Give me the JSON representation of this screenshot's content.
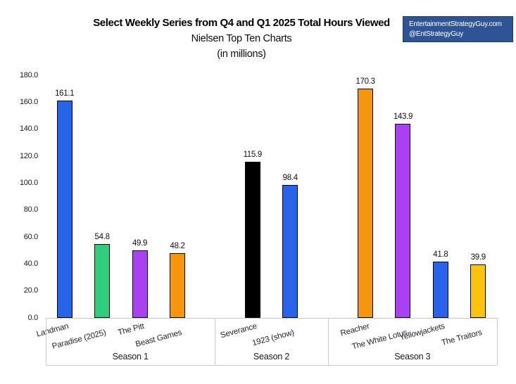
{
  "title": "Select Weekly Series from Q4 and Q1 2025 Total Hours Viewed",
  "subtitle": "Nielsen Top Ten Charts",
  "units": "(in millions)",
  "badge": {
    "line1": "EntertainmentStrategyGuy.com",
    "line2": "@EntStrategyGuy",
    "bg_color": "#2F5496",
    "border_color": "#1F3864",
    "text_color": "#FFFFFF"
  },
  "chart_data": {
    "type": "bar",
    "title": "Select Weekly Series from Q4 and Q1 2025 Total Hours Viewed",
    "subtitle": "Nielsen Top Ten Charts",
    "units": "(in millions)",
    "xlabel": "",
    "ylabel": "",
    "ylim": [
      0,
      180
    ],
    "ytick_step": 20,
    "ytick_format": "one_decimal",
    "gridlines": false,
    "legend": false,
    "bar_border_color": "#000000",
    "axis_line_color": "#c9c9c9",
    "groups": [
      {
        "label": "Season 1",
        "bars": [
          {
            "label": "Landman",
            "value": 161.1,
            "color": "#2863EA"
          },
          {
            "label": "Paradise (2025)",
            "value": 54.8,
            "color": "#2ECE7D"
          },
          {
            "label": "The Pitt",
            "value": 49.9,
            "color": "#AB40F2"
          },
          {
            "label": "Beast Games",
            "value": 48.2,
            "color": "#F6950E"
          }
        ]
      },
      {
        "label": "Season 2",
        "bars": [
          {
            "label": "Severance",
            "value": 115.9,
            "color": "#000000"
          },
          {
            "label": "1923 (show)",
            "value": 98.4,
            "color": "#2863EA"
          }
        ]
      },
      {
        "label": "Season 3",
        "bars": [
          {
            "label": "Reacher",
            "value": 170.3,
            "color": "#F6950E"
          },
          {
            "label": "The White Lotus",
            "value": 143.9,
            "color": "#AB40F2"
          },
          {
            "label": "Yellowjackets",
            "value": 41.8,
            "color": "#2863EA"
          },
          {
            "label": "The Traitors",
            "value": 39.9,
            "color": "#FCC30D"
          }
        ]
      }
    ]
  }
}
